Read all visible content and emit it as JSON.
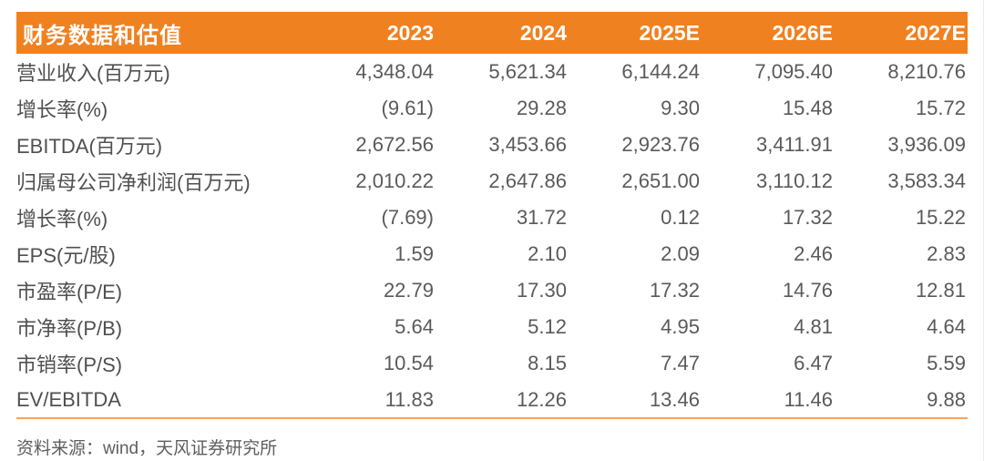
{
  "table": {
    "header": {
      "title": "财务数据和估值",
      "columns": [
        "2023",
        "2024",
        "2025E",
        "2026E",
        "2027E"
      ]
    },
    "rows": [
      {
        "label": "营业收入(百万元)",
        "values": [
          "4,348.04",
          "5,621.34",
          "6,144.24",
          "7,095.40",
          "8,210.76"
        ]
      },
      {
        "label": "增长率(%)",
        "values": [
          "(9.61)",
          "29.28",
          "9.30",
          "15.48",
          "15.72"
        ]
      },
      {
        "label": "EBITDA(百万元)",
        "values": [
          "2,672.56",
          "3,453.66",
          "2,923.76",
          "3,411.91",
          "3,936.09"
        ]
      },
      {
        "label": "归属母公司净利润(百万元)",
        "values": [
          "2,010.22",
          "2,647.86",
          "2,651.00",
          "3,110.12",
          "3,583.34"
        ]
      },
      {
        "label": "增长率(%)",
        "values": [
          "(7.69)",
          "31.72",
          "0.12",
          "17.32",
          "15.22"
        ]
      },
      {
        "label": "EPS(元/股)",
        "values": [
          "1.59",
          "2.10",
          "2.09",
          "2.46",
          "2.83"
        ]
      },
      {
        "label": "市盈率(P/E)",
        "values": [
          "22.79",
          "17.30",
          "17.32",
          "14.76",
          "12.81"
        ]
      },
      {
        "label": "市净率(P/B)",
        "values": [
          "5.64",
          "5.12",
          "4.95",
          "4.81",
          "4.64"
        ]
      },
      {
        "label": "市销率(P/S)",
        "values": [
          "10.54",
          "8.15",
          "7.47",
          "6.47",
          "5.59"
        ]
      },
      {
        "label": "EV/EBITDA",
        "values": [
          "11.83",
          "12.26",
          "13.46",
          "11.46",
          "9.88"
        ]
      }
    ]
  },
  "footer": {
    "source": "资料来源：wind，天风证券研究所"
  },
  "colors": {
    "accent_orange": "#f08120",
    "bottom_rule_orange": "#f5a55f",
    "header_text": "#ffffff",
    "body_text": "#5a5a5a"
  }
}
